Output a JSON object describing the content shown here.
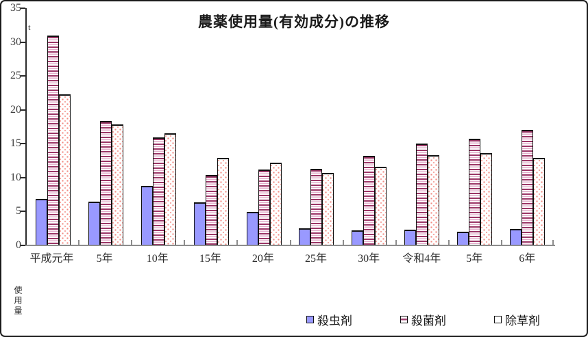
{
  "chart_data": {
    "type": "bar",
    "title": "農薬使用量(有効成分)の推移",
    "unit_label": "t",
    "ylabel": "使用量",
    "ylim": [
      0,
      35
    ],
    "yticks": [
      0,
      5,
      10,
      15,
      20,
      25,
      30,
      35
    ],
    "grid": false,
    "legend_position": "bottom",
    "categories": [
      "平成元年",
      "5年",
      "10年",
      "15年",
      "20年",
      "25年",
      "30年",
      "令和4年",
      "5年",
      "6年"
    ],
    "series": [
      {
        "name": "殺虫剤",
        "pattern": "solid",
        "color": "#9999FF",
        "values": [
          6.9,
          6.5,
          8.8,
          6.4,
          4.9,
          2.5,
          2.2,
          2.3,
          2.0,
          2.4
        ]
      },
      {
        "name": "殺菌剤",
        "pattern": "horizontal-stripes",
        "color": "#9B3566",
        "values": [
          31.0,
          18.4,
          15.9,
          10.4,
          11.2,
          11.3,
          13.2,
          15.0,
          15.7,
          17.0
        ]
      },
      {
        "name": "除草剤",
        "pattern": "dots",
        "color": "#F28A82",
        "values": [
          22.3,
          17.9,
          16.5,
          12.9,
          12.2,
          10.7,
          11.6,
          13.3,
          13.6,
          12.9
        ]
      }
    ]
  }
}
